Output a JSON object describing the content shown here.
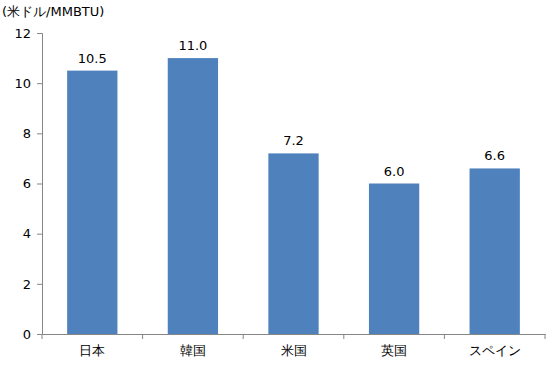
{
  "chart_data": {
    "type": "bar",
    "ylabel": "(米ドル/MMBTU)",
    "categories": [
      "日本",
      "韓国",
      "米国",
      "英国",
      "スペイン"
    ],
    "values": [
      10.5,
      11.0,
      7.2,
      6.0,
      6.6
    ],
    "value_labels": [
      "10.5",
      "11.0",
      "7.2",
      "6.0",
      "6.6"
    ],
    "color": "#4f81bd",
    "ylim": [
      0,
      12
    ],
    "yticks": [
      0,
      2,
      4,
      6,
      8,
      10,
      12
    ],
    "grid": false,
    "data_labels": true
  }
}
